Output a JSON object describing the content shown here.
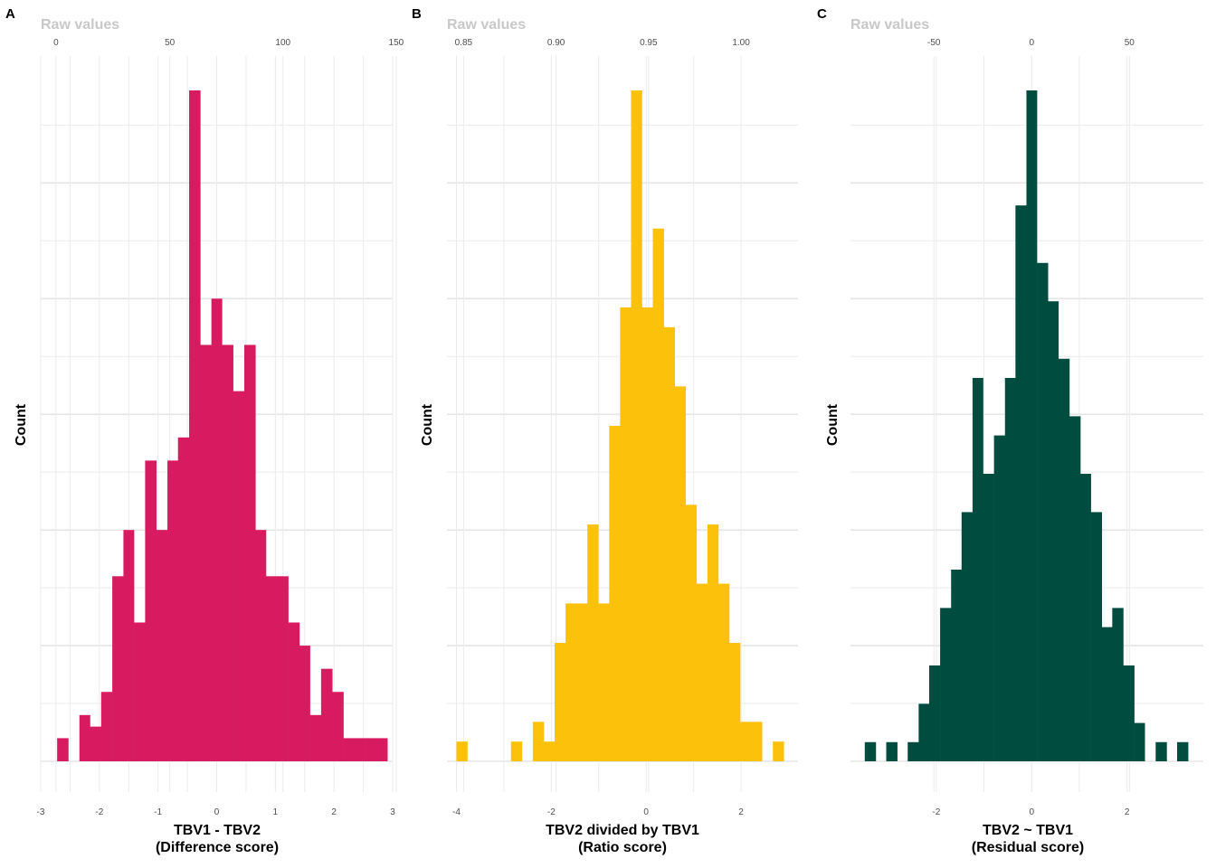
{
  "figure": {
    "panels": [
      {
        "letter": "A",
        "raw_title": "Raw values",
        "ylabel": "Count",
        "xlabel_line1": "TBV1 - TBV2",
        "xlabel_line2": "(Difference score)"
      },
      {
        "letter": "B",
        "raw_title": "Raw values",
        "ylabel": "Count",
        "xlabel_line1": "TBV2 divided by TBV1",
        "xlabel_line2": "(Ratio score)"
      },
      {
        "letter": "C",
        "raw_title": "Raw values",
        "ylabel": "Count",
        "xlabel_line1": "TBV2 ~ TBV1",
        "xlabel_line2": "(Residual score)"
      }
    ]
  },
  "chart_data": [
    {
      "type": "bar",
      "panel": "A",
      "title": "",
      "xlabel": "TBV1 - TBV2\n(Difference score)",
      "ylabel": "Count",
      "color": "#D81B60",
      "xlim": [
        -3,
        3
      ],
      "bin_width": 0.1875,
      "bins": [
        {
          "x0": -2.72,
          "x1": -2.53,
          "count": 2
        },
        {
          "x0": -2.34,
          "x1": -2.16,
          "count": 4
        },
        {
          "x0": -2.16,
          "x1": -1.97,
          "count": 3
        },
        {
          "x0": -1.97,
          "x1": -1.78,
          "count": 6
        },
        {
          "x0": -1.78,
          "x1": -1.59,
          "count": 16
        },
        {
          "x0": -1.59,
          "x1": -1.41,
          "count": 20
        },
        {
          "x0": -1.41,
          "x1": -1.22,
          "count": 12
        },
        {
          "x0": -1.22,
          "x1": -1.03,
          "count": 26
        },
        {
          "x0": -1.03,
          "x1": -0.84,
          "count": 20
        },
        {
          "x0": -0.84,
          "x1": -0.66,
          "count": 26
        },
        {
          "x0": -0.66,
          "x1": -0.47,
          "count": 28
        },
        {
          "x0": -0.47,
          "x1": -0.28,
          "count": 58
        },
        {
          "x0": -0.28,
          "x1": -0.09,
          "count": 36
        },
        {
          "x0": -0.09,
          "x1": 0.09,
          "count": 40
        },
        {
          "x0": 0.09,
          "x1": 0.28,
          "count": 36
        },
        {
          "x0": 0.28,
          "x1": 0.47,
          "count": 32
        },
        {
          "x0": 0.47,
          "x1": 0.66,
          "count": 36
        },
        {
          "x0": 0.66,
          "x1": 0.84,
          "count": 20
        },
        {
          "x0": 0.84,
          "x1": 1.03,
          "count": 16
        },
        {
          "x0": 1.03,
          "x1": 1.22,
          "count": 16
        },
        {
          "x0": 1.22,
          "x1": 1.41,
          "count": 12
        },
        {
          "x0": 1.41,
          "x1": 1.59,
          "count": 10
        },
        {
          "x0": 1.59,
          "x1": 1.78,
          "count": 4
        },
        {
          "x0": 1.78,
          "x1": 1.97,
          "count": 8
        },
        {
          "x0": 1.97,
          "x1": 2.16,
          "count": 6
        },
        {
          "x0": 2.16,
          "x1": 2.53,
          "count": 2
        },
        {
          "x0": 2.53,
          "x1": 2.91,
          "count": 2
        }
      ],
      "x_ticks": [
        -3,
        -2,
        -1,
        0,
        1,
        2,
        3
      ],
      "x_tick_labels": [
        "-3",
        "-2",
        "-1",
        "0",
        "1",
        "2",
        "3"
      ],
      "top_axis_title": "Raw values",
      "top_ticks": [
        {
          "label": "0",
          "z": -2.74
        },
        {
          "label": "50",
          "z": -0.8
        },
        {
          "label": "100",
          "z": 1.13
        },
        {
          "label": "150",
          "z": 3.06
        }
      ],
      "grid": true
    },
    {
      "type": "bar",
      "panel": "B",
      "title": "",
      "xlabel": "TBV2 divided by TBV1\n(Ratio score)",
      "ylabel": "Count",
      "color": "#FCC10A",
      "xlim": [
        -4.2,
        3.2
      ],
      "bin_width": 0.23,
      "bins": [
        {
          "x0": -4.0,
          "x1": -3.77,
          "count": 2
        },
        {
          "x0": -2.85,
          "x1": -2.62,
          "count": 2
        },
        {
          "x0": -2.39,
          "x1": -2.16,
          "count": 4
        },
        {
          "x0": -2.16,
          "x1": -1.93,
          "count": 2
        },
        {
          "x0": -1.93,
          "x1": -1.7,
          "count": 12
        },
        {
          "x0": -1.7,
          "x1": -1.47,
          "count": 16
        },
        {
          "x0": -1.47,
          "x1": -1.24,
          "count": 16
        },
        {
          "x0": -1.24,
          "x1": -1.01,
          "count": 24
        },
        {
          "x0": -1.01,
          "x1": -0.78,
          "count": 16
        },
        {
          "x0": -0.78,
          "x1": -0.55,
          "count": 34
        },
        {
          "x0": -0.55,
          "x1": -0.32,
          "count": 46
        },
        {
          "x0": -0.32,
          "x1": -0.09,
          "count": 68
        },
        {
          "x0": -0.09,
          "x1": 0.14,
          "count": 46
        },
        {
          "x0": 0.14,
          "x1": 0.37,
          "count": 54
        },
        {
          "x0": 0.37,
          "x1": 0.6,
          "count": 44
        },
        {
          "x0": 0.6,
          "x1": 0.83,
          "count": 38
        },
        {
          "x0": 0.83,
          "x1": 1.06,
          "count": 26
        },
        {
          "x0": 1.06,
          "x1": 1.29,
          "count": 18
        },
        {
          "x0": 1.29,
          "x1": 1.52,
          "count": 24
        },
        {
          "x0": 1.52,
          "x1": 1.75,
          "count": 18
        },
        {
          "x0": 1.75,
          "x1": 1.98,
          "count": 12
        },
        {
          "x0": 1.98,
          "x1": 2.44,
          "count": 4
        },
        {
          "x0": 2.67,
          "x1": 2.9,
          "count": 2
        }
      ],
      "x_ticks": [
        -4,
        -2,
        0,
        2
      ],
      "x_tick_labels": [
        "-4",
        "-2",
        "0",
        "2"
      ],
      "top_axis_title": "Raw values",
      "top_ticks": [
        {
          "label": "0.85",
          "z": -3.85
        },
        {
          "label": "0.90",
          "z": -1.9
        },
        {
          "label": "0.95",
          "z": 0.05
        },
        {
          "label": "1.00",
          "z": 2.0
        }
      ],
      "grid": true
    },
    {
      "type": "bar",
      "panel": "C",
      "title": "",
      "xlabel": "TBV2 ~ TBV1\n(Residual score)",
      "ylabel": "Count",
      "color": "#004D40",
      "xlim": [
        -3.8,
        3.6
      ],
      "bin_width": 0.226,
      "bins": [
        {
          "x0": -3.5,
          "x1": -3.27,
          "count": 2
        },
        {
          "x0": -3.05,
          "x1": -2.82,
          "count": 2
        },
        {
          "x0": -2.6,
          "x1": -2.37,
          "count": 2
        },
        {
          "x0": -2.37,
          "x1": -2.15,
          "count": 6
        },
        {
          "x0": -2.15,
          "x1": -1.92,
          "count": 10
        },
        {
          "x0": -1.92,
          "x1": -1.69,
          "count": 16
        },
        {
          "x0": -1.69,
          "x1": -1.47,
          "count": 20
        },
        {
          "x0": -1.47,
          "x1": -1.24,
          "count": 26
        },
        {
          "x0": -1.24,
          "x1": -1.02,
          "count": 40
        },
        {
          "x0": -1.02,
          "x1": -0.79,
          "count": 30
        },
        {
          "x0": -0.79,
          "x1": -0.56,
          "count": 34
        },
        {
          "x0": -0.56,
          "x1": -0.34,
          "count": 40
        },
        {
          "x0": -0.34,
          "x1": -0.11,
          "count": 58
        },
        {
          "x0": -0.11,
          "x1": 0.11,
          "count": 70
        },
        {
          "x0": 0.11,
          "x1": 0.34,
          "count": 52
        },
        {
          "x0": 0.34,
          "x1": 0.56,
          "count": 48
        },
        {
          "x0": 0.56,
          "x1": 0.79,
          "count": 42
        },
        {
          "x0": 0.79,
          "x1": 1.02,
          "count": 36
        },
        {
          "x0": 1.02,
          "x1": 1.24,
          "count": 30
        },
        {
          "x0": 1.24,
          "x1": 1.47,
          "count": 26
        },
        {
          "x0": 1.47,
          "x1": 1.69,
          "count": 14
        },
        {
          "x0": 1.69,
          "x1": 1.92,
          "count": 16
        },
        {
          "x0": 1.92,
          "x1": 2.15,
          "count": 10
        },
        {
          "x0": 2.15,
          "x1": 2.37,
          "count": 4
        },
        {
          "x0": 2.6,
          "x1": 2.83,
          "count": 2
        },
        {
          "x0": 3.05,
          "x1": 3.28,
          "count": 2
        }
      ],
      "x_ticks": [
        -2,
        0,
        2
      ],
      "x_tick_labels": [
        "-2",
        "0",
        "2"
      ],
      "top_axis_title": "Raw values",
      "top_ticks": [
        {
          "label": "-50",
          "z": -2.05
        },
        {
          "label": "0",
          "z": 0.0
        },
        {
          "label": "50",
          "z": 2.05
        }
      ],
      "grid": true
    }
  ]
}
